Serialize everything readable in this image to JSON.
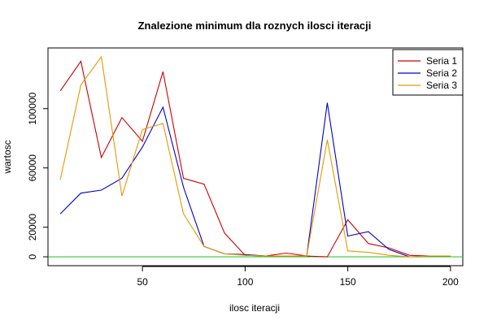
{
  "chart_data": {
    "type": "line",
    "title": "Znalezione minimum dla roznych ilosci iteracji",
    "xlabel": "ilosc iteracji",
    "ylabel": "wartosc",
    "xlim": [
      4,
      206
    ],
    "ylim": [
      -6000,
      141000
    ],
    "x_ticks": [
      50,
      100,
      150,
      200
    ],
    "y_ticks": [
      0,
      20000,
      60000,
      100000
    ],
    "y_tick_labels": [
      "0",
      "20000",
      "60000",
      "100000"
    ],
    "x": [
      10,
      20,
      30,
      40,
      50,
      60,
      70,
      80,
      90,
      100,
      110,
      120,
      130,
      140,
      150,
      160,
      170,
      180,
      190,
      200
    ],
    "series": [
      {
        "name": "Seria 1",
        "color": "#cc0000",
        "values": [
          112000,
          132000,
          67000,
          94000,
          78000,
          125000,
          53000,
          49000,
          16000,
          1000,
          500,
          2500,
          500,
          0,
          25000,
          9000,
          6000,
          1000,
          500,
          500
        ]
      },
      {
        "name": "Seria 2",
        "color": "#0000cc",
        "values": [
          29000,
          43000,
          45000,
          53000,
          74000,
          101000,
          47000,
          7000,
          2000,
          1500,
          500,
          500,
          500,
          104000,
          14000,
          17000,
          5000,
          0,
          500,
          500
        ]
      },
      {
        "name": "Seria 3",
        "color": "#e69900",
        "values": [
          52000,
          116000,
          135000,
          41000,
          86000,
          90000,
          29000,
          7000,
          2000,
          1000,
          500,
          500,
          500,
          79000,
          4000,
          3000,
          1000,
          0,
          500,
          500
        ]
      }
    ],
    "reference_line": {
      "y": 0,
      "color": "#33cc33"
    },
    "legend": {
      "placement": "top-right",
      "entries": [
        "Seria 1",
        "Seria 2",
        "Seria 3"
      ]
    },
    "grid": false
  }
}
